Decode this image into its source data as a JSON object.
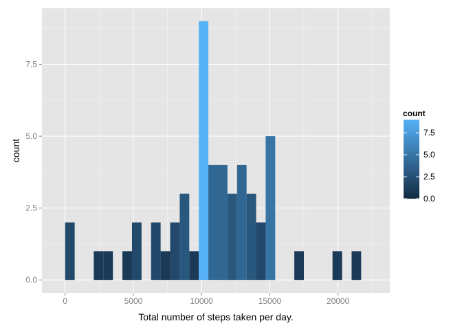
{
  "chart_data": {
    "type": "bar",
    "subtype": "histogram",
    "title": "",
    "xlabel": "Total number of steps taken per day.",
    "ylabel": "count",
    "binwidth": 700,
    "bins": [
      {
        "x": 350,
        "count": 2
      },
      {
        "x": 2450,
        "count": 1
      },
      {
        "x": 3150,
        "count": 1
      },
      {
        "x": 4550,
        "count": 1
      },
      {
        "x": 5250,
        "count": 2
      },
      {
        "x": 6650,
        "count": 2
      },
      {
        "x": 7350,
        "count": 1
      },
      {
        "x": 8050,
        "count": 2
      },
      {
        "x": 8750,
        "count": 3
      },
      {
        "x": 9450,
        "count": 1
      },
      {
        "x": 10150,
        "count": 9
      },
      {
        "x": 10850,
        "count": 4
      },
      {
        "x": 11550,
        "count": 4
      },
      {
        "x": 12250,
        "count": 3
      },
      {
        "x": 12950,
        "count": 4
      },
      {
        "x": 13650,
        "count": 3
      },
      {
        "x": 14350,
        "count": 2
      },
      {
        "x": 15050,
        "count": 5
      },
      {
        "x": 17150,
        "count": 1
      },
      {
        "x": 19950,
        "count": 1
      },
      {
        "x": 21350,
        "count": 1
      }
    ],
    "xlim": [
      -1700,
      23800
    ],
    "ylim": [
      -0.45,
      9.45
    ],
    "x_ticks": [
      0,
      5000,
      10000,
      15000,
      20000
    ],
    "x_tick_labels": [
      "0",
      "5000",
      "10000",
      "15000",
      "20000"
    ],
    "y_ticks": [
      0,
      2.5,
      5,
      7.5
    ],
    "y_tick_labels": [
      "0.0",
      "2.5",
      "5.0",
      "7.5"
    ],
    "grid": true,
    "panel_background": "#e5e5e5",
    "fill_scale": {
      "low": "#132b43",
      "high": "#56b1f7",
      "min": 0,
      "max": 9
    },
    "legend": {
      "title": "count",
      "placement": "right",
      "breaks": [
        0,
        2.5,
        5,
        7.5
      ],
      "labels": [
        "0.0",
        "2.5",
        "5.0",
        "7.5"
      ]
    }
  }
}
